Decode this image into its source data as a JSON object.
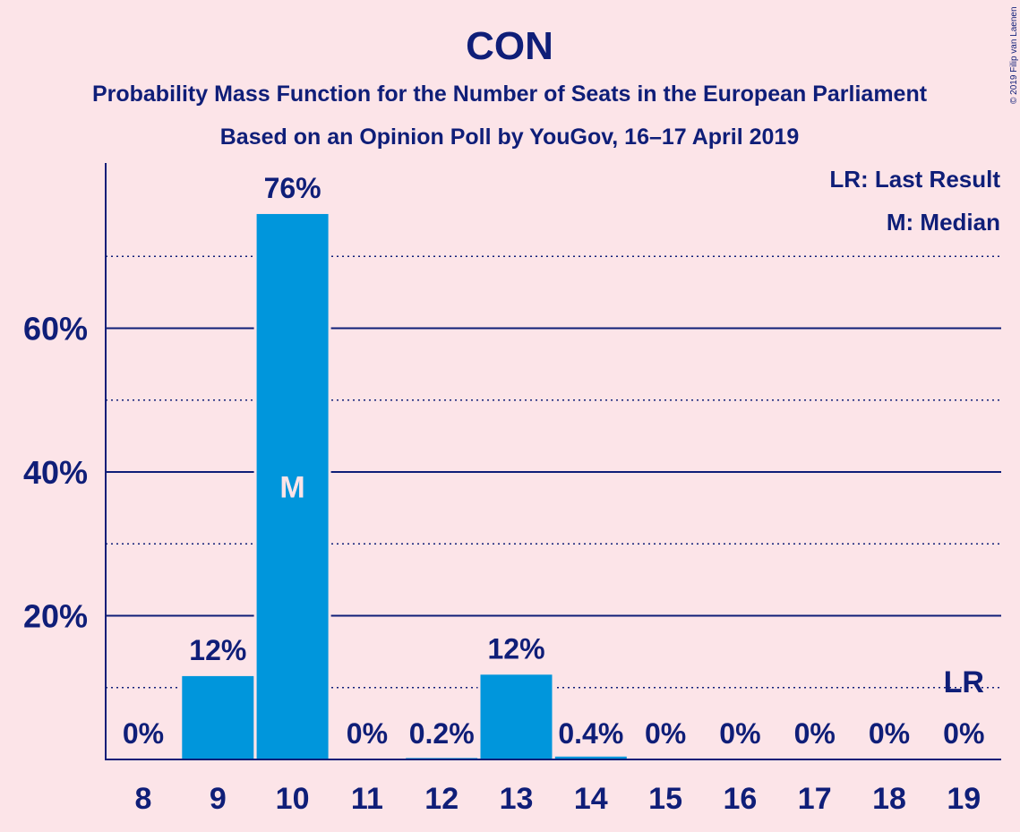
{
  "colors": {
    "background": "#fce4e8",
    "text": "#0f1e78",
    "bar": "#0096dc",
    "median_label": "#fce4e8"
  },
  "credit": "© 2019 Filip van Laenen",
  "legend": {
    "last_result": "LR: Last Result",
    "median": "M: Median"
  },
  "chart_data": {
    "type": "bar",
    "title": "CON",
    "subtitle": "Probability Mass Function for the Number of Seats in the European Parliament",
    "subtitle2": "Based on an Opinion Poll by YouGov, 16–17 April 2019",
    "xlabel": "",
    "ylabel": "",
    "categories": [
      "8",
      "9",
      "10",
      "11",
      "12",
      "13",
      "14",
      "15",
      "16",
      "17",
      "18",
      "19"
    ],
    "values": [
      0,
      11.6,
      75.9,
      0,
      0.2,
      11.8,
      0.4,
      0,
      0,
      0,
      0,
      0
    ],
    "value_labels": [
      "0%",
      "12%",
      "76%",
      "0%",
      "0.2%",
      "12%",
      "0.4%",
      "0%",
      "0%",
      "0%",
      "0%",
      "0%"
    ],
    "ylim": [
      0,
      82.5
    ],
    "y_ticks": [
      20,
      40,
      60
    ],
    "y_tick_labels": [
      "20%",
      "40%",
      "60%"
    ],
    "dotted_gridlines": [
      10,
      30,
      50,
      70
    ],
    "median": {
      "category": "10",
      "label": "M"
    },
    "last_result": {
      "category": "19",
      "label": "LR",
      "value": 10
    },
    "legend_position": "top-right"
  }
}
